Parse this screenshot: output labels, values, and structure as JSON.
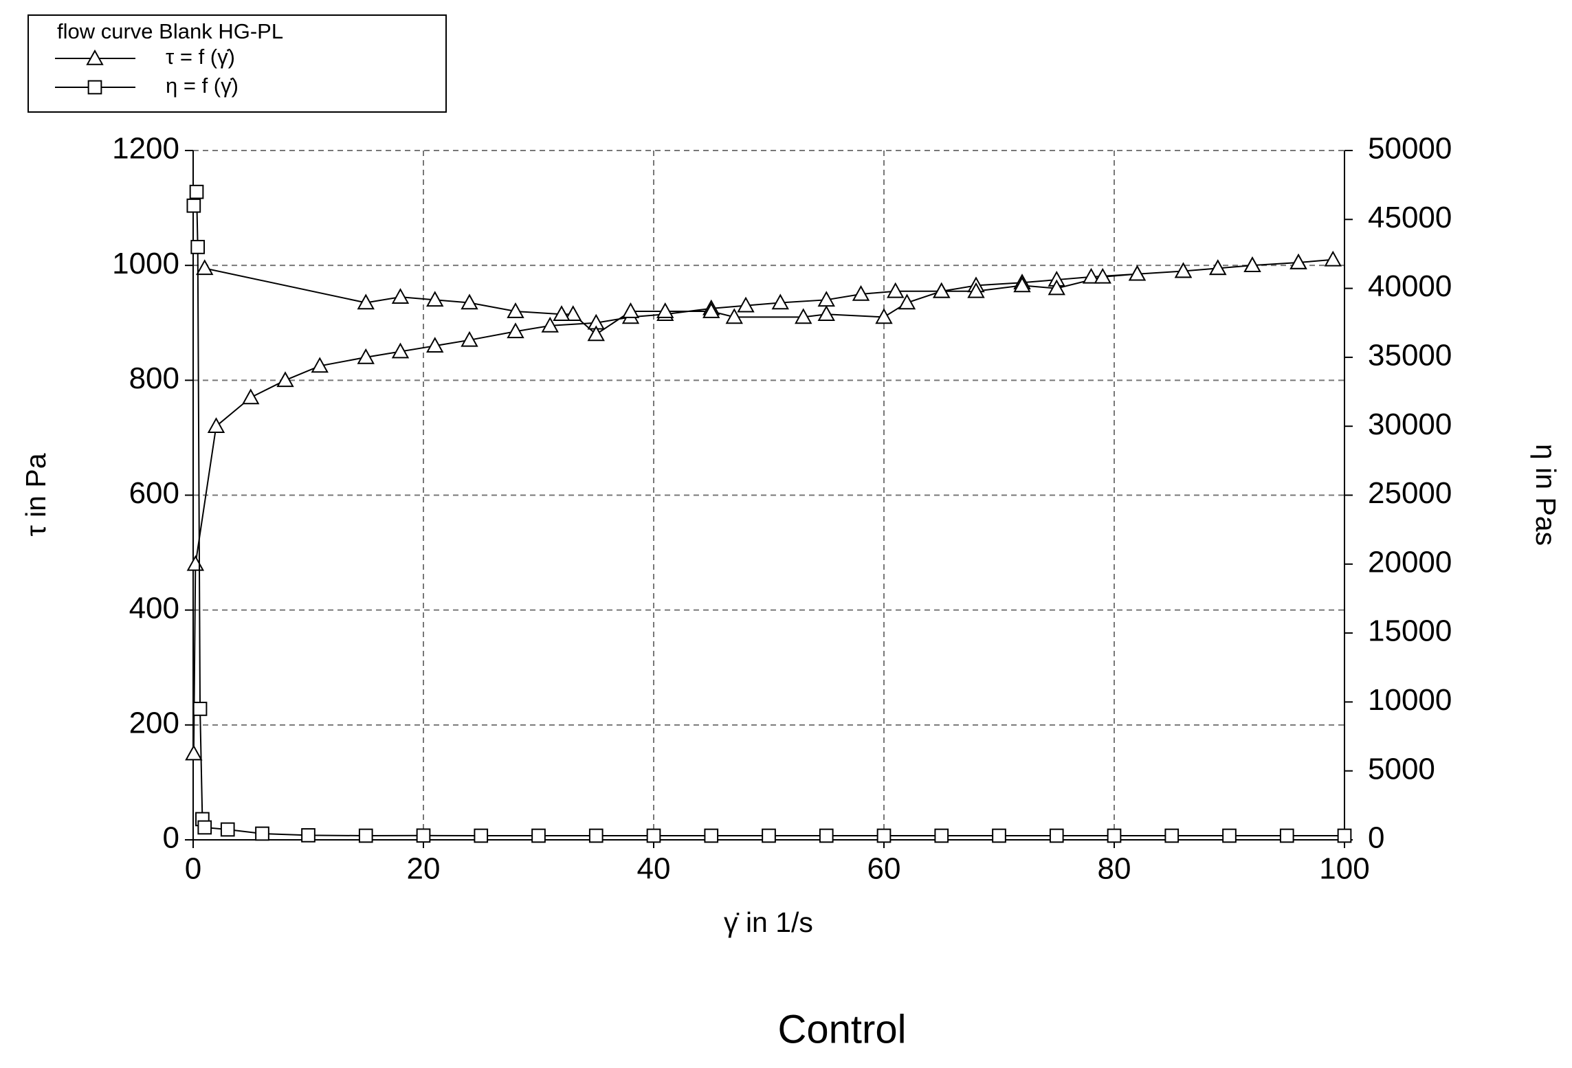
{
  "chart_data": {
    "type": "line",
    "legend_title": "flow curve Blank HG-PL",
    "xlabel": "γ̇ in 1/s",
    "ylabel": "τ in Pa",
    "y2label": "η in Pas",
    "caption": "Control",
    "xlim": [
      0,
      100
    ],
    "xticks": [
      0,
      20,
      40,
      60,
      80,
      100
    ],
    "ylim": [
      0,
      1200
    ],
    "yticks": [
      0,
      200,
      400,
      600,
      800,
      1000,
      1200
    ],
    "y2lim": [
      0,
      50000
    ],
    "y2ticks": [
      0,
      5000,
      10000,
      15000,
      20000,
      25000,
      30000,
      35000,
      40000,
      45000,
      50000
    ],
    "grid": true,
    "legend": "top-left",
    "series": [
      {
        "name": "τ = f (γ̇)",
        "color": "#000000",
        "marker": "triangle",
        "axis": "y",
        "x": [
          0.05,
          0.2,
          2,
          5,
          8,
          11,
          15,
          18,
          21,
          24,
          28,
          31,
          35,
          38,
          41,
          45,
          48,
          51,
          55,
          58,
          61,
          65,
          68,
          72,
          75,
          78,
          82,
          86,
          89,
          92,
          96,
          99,
          96,
          92,
          89,
          86,
          82,
          79,
          75,
          72,
          68,
          65,
          62,
          60,
          55,
          53,
          47,
          45,
          41,
          38,
          35,
          33,
          32,
          28,
          24,
          21,
          18,
          15,
          1
        ],
        "values": [
          150,
          480,
          720,
          770,
          800,
          825,
          840,
          850,
          860,
          870,
          885,
          895,
          900,
          910,
          915,
          925,
          930,
          935,
          940,
          950,
          955,
          955,
          965,
          970,
          975,
          980,
          985,
          990,
          995,
          1000,
          1005,
          1010,
          1005,
          1000,
          995,
          990,
          985,
          980,
          960,
          965,
          955,
          955,
          935,
          910,
          915,
          910,
          910,
          920,
          920,
          920,
          880,
          915,
          915,
          920,
          935,
          940,
          945,
          935,
          995
        ]
      },
      {
        "name": "η = f (γ̇)",
        "color": "#000000",
        "marker": "square",
        "axis": "y2",
        "x": [
          0.05,
          0.3,
          0.4,
          0.6,
          0.8,
          1,
          3,
          6,
          10,
          15,
          20,
          25,
          30,
          35,
          40,
          45,
          50,
          55,
          60,
          65,
          70,
          75,
          80,
          85,
          90,
          95,
          100
        ],
        "values": [
          46000,
          47000,
          43000,
          9500,
          1500,
          900,
          750,
          450,
          330,
          300,
          310,
          300,
          300,
          300,
          300,
          300,
          300,
          300,
          300,
          300,
          300,
          300,
          300,
          300,
          300,
          300,
          300
        ]
      }
    ]
  }
}
